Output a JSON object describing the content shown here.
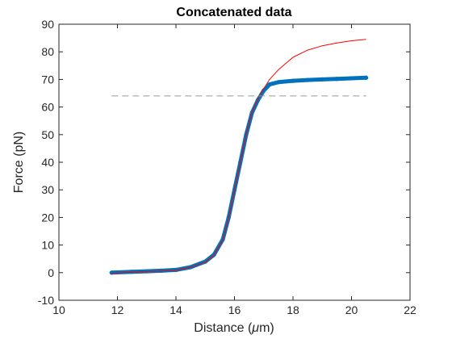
{
  "chart_data": {
    "type": "line",
    "title": "Concatenated data",
    "xlabel": "Distance (",
    "xlabel_mu": "μ",
    "xlabel_end": "m)",
    "ylabel": "Force (pN)",
    "xlim": [
      10,
      22
    ],
    "ylim": [
      -10,
      90
    ],
    "x_ticks": [
      10,
      12,
      14,
      16,
      18,
      20,
      22
    ],
    "y_ticks": [
      -10,
      0,
      10,
      20,
      30,
      40,
      50,
      60,
      70,
      80,
      90
    ],
    "grid": false,
    "colors": {
      "measured": "#0072BD",
      "fit": "#FF0000",
      "threshold": "#999999"
    },
    "series": [
      {
        "role": "measured",
        "x": [
          11.8,
          12.5,
          13.0,
          13.5,
          14.0,
          14.5,
          15.0,
          15.3,
          15.6,
          15.8,
          16.0,
          16.2,
          16.4,
          16.6,
          16.8,
          17.0,
          17.2,
          17.5,
          18.0,
          18.5,
          19.0,
          19.5,
          20.0,
          20.5
        ],
        "y": [
          0.0,
          0.3,
          0.5,
          0.7,
          1.0,
          2.0,
          4.0,
          6.5,
          12.0,
          20.0,
          30.0,
          40.0,
          50.0,
          58.0,
          62.5,
          66.0,
          68.2,
          69.0,
          69.5,
          69.8,
          70.0,
          70.2,
          70.4,
          70.6
        ]
      },
      {
        "role": "fit",
        "x": [
          11.8,
          12.5,
          13.0,
          13.5,
          14.0,
          14.5,
          15.0,
          15.3,
          15.6,
          15.8,
          16.0,
          16.2,
          16.4,
          16.6,
          16.8,
          17.0,
          17.2,
          17.5,
          18.0,
          18.5,
          19.0,
          19.5,
          20.0,
          20.5
        ],
        "y": [
          -0.2,
          0.2,
          0.4,
          0.6,
          0.9,
          1.9,
          3.8,
          6.3,
          11.8,
          19.8,
          29.8,
          40.0,
          50.0,
          58.2,
          63.0,
          66.6,
          70.0,
          73.5,
          78.0,
          80.6,
          82.2,
          83.2,
          84.0,
          84.5
        ]
      },
      {
        "role": "threshold",
        "x": [
          11.8,
          20.5
        ],
        "y": [
          64,
          64
        ]
      }
    ]
  }
}
